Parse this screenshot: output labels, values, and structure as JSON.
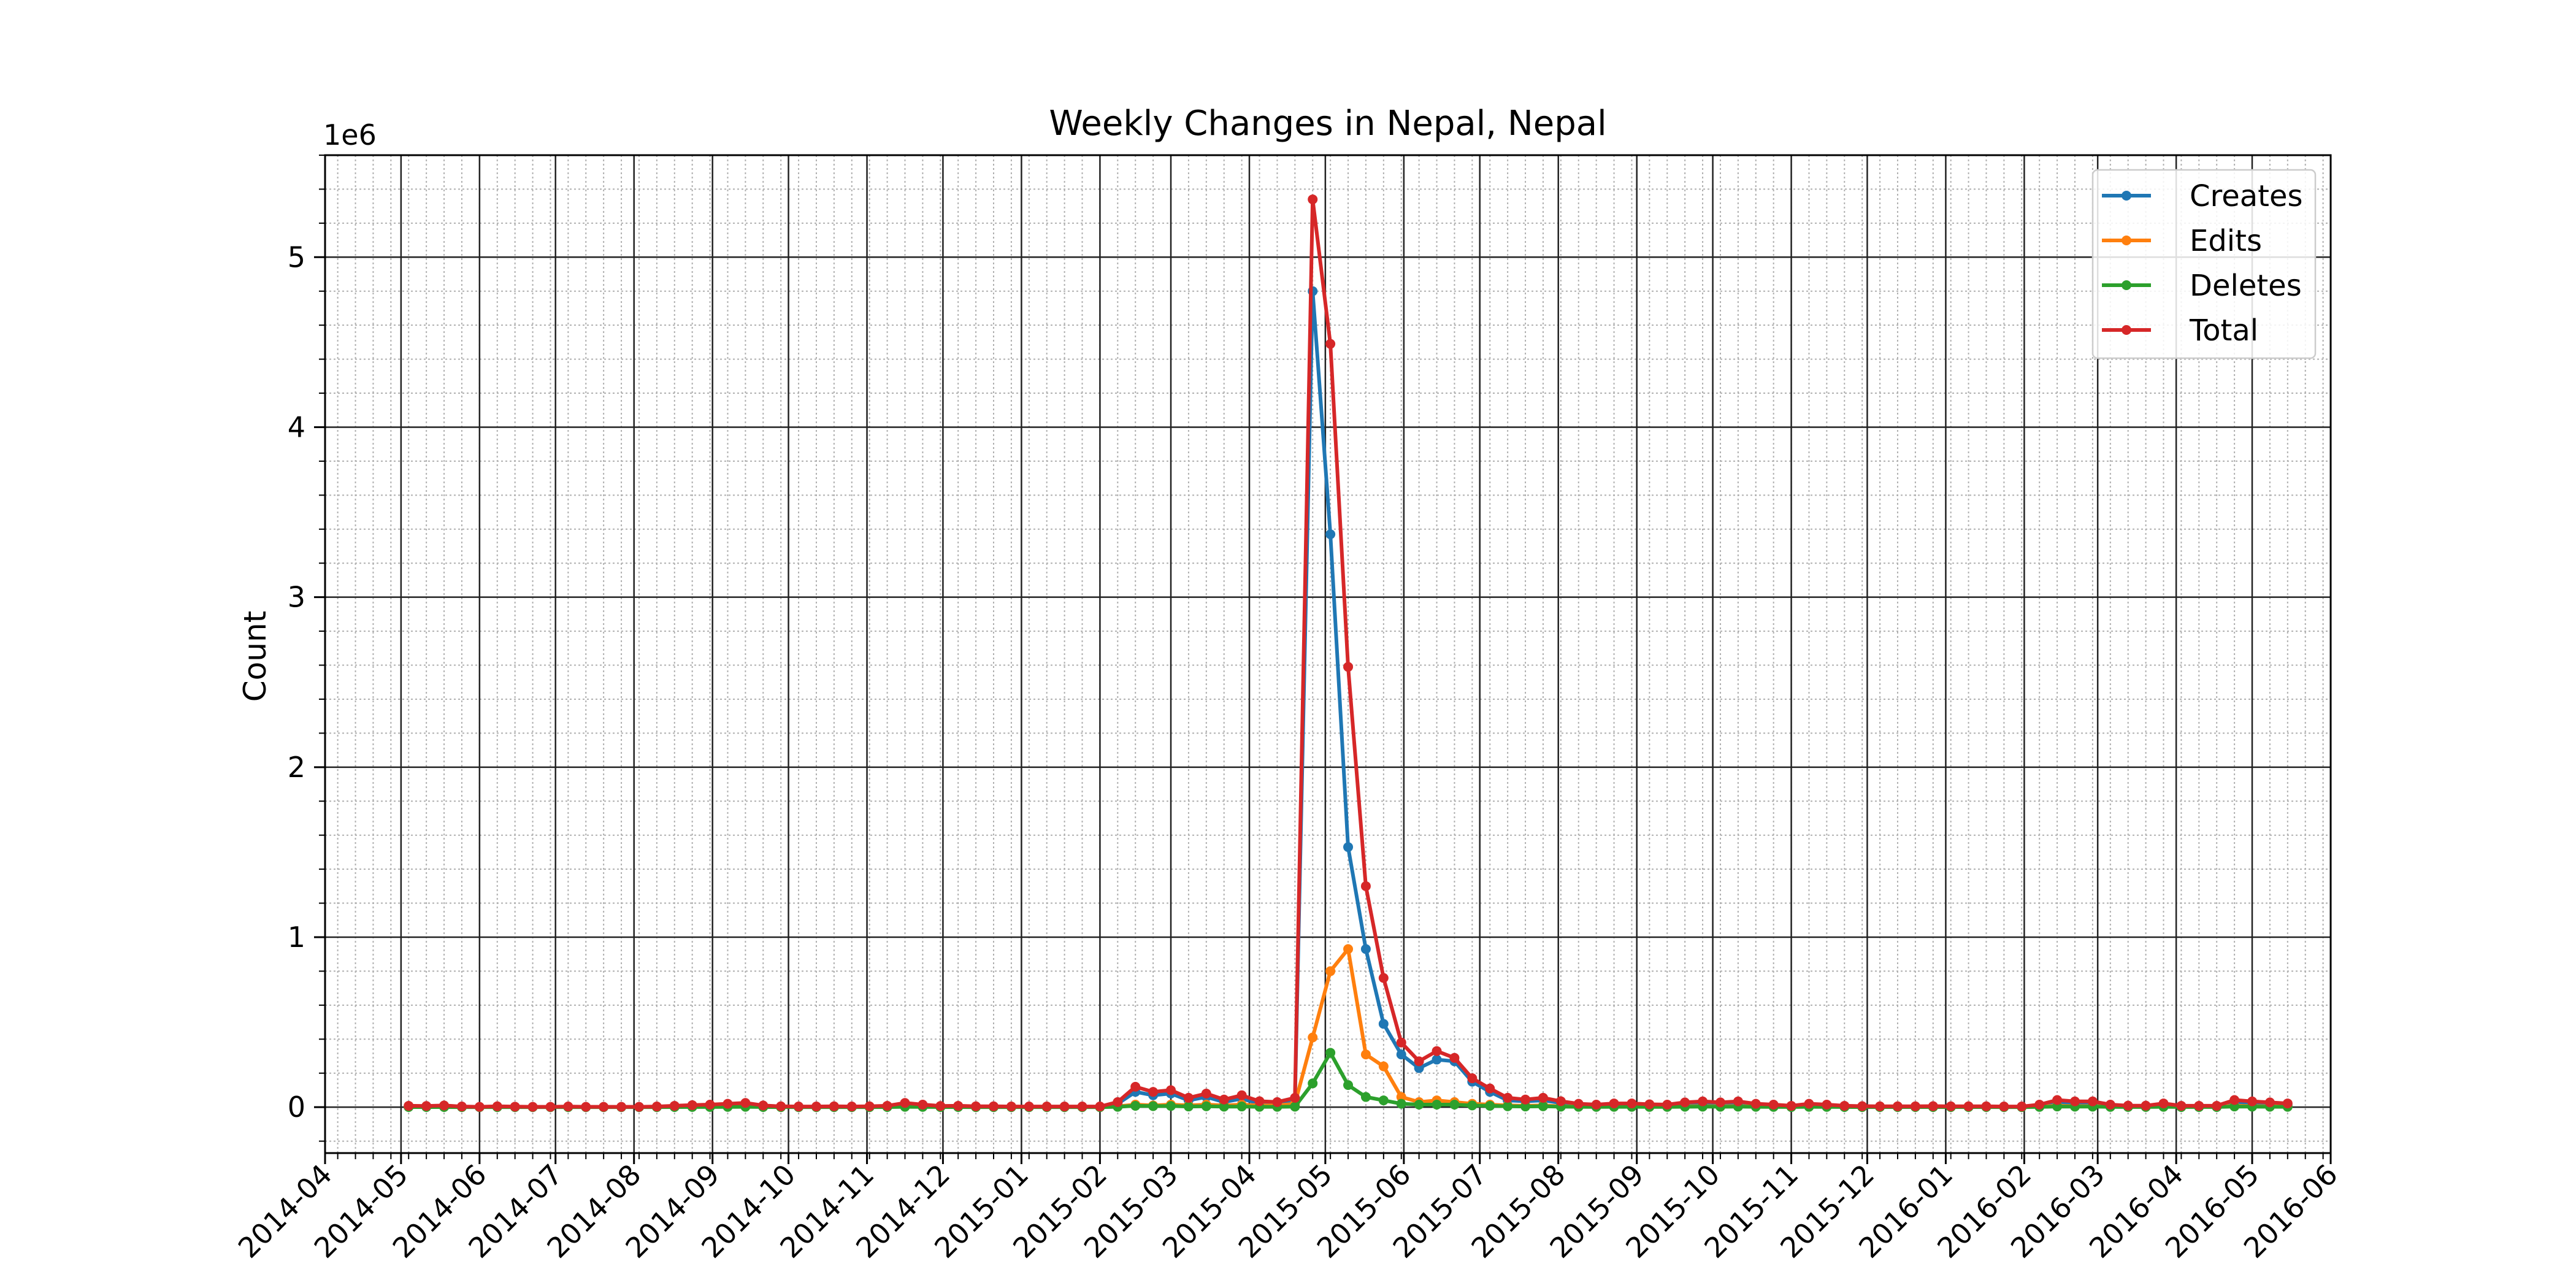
{
  "chart_data": {
    "type": "line",
    "title": "Weekly Changes in Nepal, Nepal",
    "xlabel": "",
    "ylabel": "Count",
    "y_offset_label": "1e6",
    "y_scale_factor": 1000000,
    "xlim": [
      "2014-04-01",
      "2016-06-01"
    ],
    "ylim": [
      -0.27,
      5.6
    ],
    "grid": true,
    "minor_grid": true,
    "legend_position": "top-right",
    "x_tick_labels": [
      "2014-04",
      "2014-05",
      "2014-06",
      "2014-07",
      "2014-08",
      "2014-09",
      "2014-10",
      "2014-11",
      "2014-12",
      "2015-01",
      "2015-02",
      "2015-03",
      "2015-04",
      "2015-05",
      "2015-06",
      "2015-07",
      "2015-08",
      "2015-09",
      "2015-10",
      "2015-11",
      "2015-12",
      "2016-01",
      "2016-02",
      "2016-03",
      "2016-04",
      "2016-05",
      "2016-06"
    ],
    "y_tick_labels": [
      "0",
      "1",
      "2",
      "3",
      "4",
      "5"
    ],
    "x": [
      "2014-05-04",
      "2014-05-11",
      "2014-05-18",
      "2014-05-25",
      "2014-06-01",
      "2014-06-08",
      "2014-06-15",
      "2014-06-22",
      "2014-06-29",
      "2014-07-06",
      "2014-07-13",
      "2014-07-20",
      "2014-07-27",
      "2014-08-03",
      "2014-08-10",
      "2014-08-17",
      "2014-08-24",
      "2014-08-31",
      "2014-09-07",
      "2014-09-14",
      "2014-09-21",
      "2014-09-28",
      "2014-10-05",
      "2014-10-12",
      "2014-10-19",
      "2014-10-26",
      "2014-11-02",
      "2014-11-09",
      "2014-11-16",
      "2014-11-23",
      "2014-11-30",
      "2014-12-07",
      "2014-12-14",
      "2014-12-21",
      "2014-12-28",
      "2015-01-04",
      "2015-01-11",
      "2015-01-18",
      "2015-01-25",
      "2015-02-01",
      "2015-02-08",
      "2015-02-15",
      "2015-02-22",
      "2015-03-01",
      "2015-03-08",
      "2015-03-15",
      "2015-03-22",
      "2015-03-29",
      "2015-04-05",
      "2015-04-12",
      "2015-04-19",
      "2015-04-26",
      "2015-05-03",
      "2015-05-10",
      "2015-05-17",
      "2015-05-24",
      "2015-05-31",
      "2015-06-07",
      "2015-06-14",
      "2015-06-21",
      "2015-06-28",
      "2015-07-05",
      "2015-07-12",
      "2015-07-19",
      "2015-07-26",
      "2015-08-02",
      "2015-08-09",
      "2015-08-16",
      "2015-08-23",
      "2015-08-30",
      "2015-09-06",
      "2015-09-13",
      "2015-09-20",
      "2015-09-27",
      "2015-10-04",
      "2015-10-11",
      "2015-10-18",
      "2015-10-25",
      "2015-11-01",
      "2015-11-08",
      "2015-11-15",
      "2015-11-22",
      "2015-11-29",
      "2015-12-06",
      "2015-12-13",
      "2015-12-20",
      "2015-12-27",
      "2016-01-03",
      "2016-01-10",
      "2016-01-17",
      "2016-01-24",
      "2016-01-31",
      "2016-02-07",
      "2016-02-14",
      "2016-02-21",
      "2016-02-28",
      "2016-03-06",
      "2016-03-13",
      "2016-03-20",
      "2016-03-27",
      "2016-04-03",
      "2016-04-10",
      "2016-04-17",
      "2016-04-24",
      "2016-05-01",
      "2016-05-08",
      "2016-05-15"
    ],
    "series": [
      {
        "name": "Creates",
        "color": "#1f77b4",
        "values": [
          5000,
          4000,
          6000,
          2000,
          1000,
          3000,
          2000,
          1000,
          1000,
          2000,
          1000,
          1000,
          1000,
          1000,
          2000,
          5000,
          8000,
          9000,
          12000,
          15000,
          6000,
          3000,
          2000,
          2000,
          3000,
          2000,
          3000,
          5000,
          15000,
          10000,
          4000,
          5000,
          3000,
          3000,
          2000,
          2000,
          2000,
          2000,
          2000,
          2000,
          20000,
          90000,
          70000,
          80000,
          40000,
          60000,
          30000,
          50000,
          20000,
          15000,
          30000,
          4800000,
          3370000,
          1530000,
          930000,
          490000,
          310000,
          230000,
          280000,
          270000,
          150000,
          90000,
          40000,
          35000,
          40000,
          25000,
          15000,
          10000,
          15000,
          15000,
          12000,
          10000,
          20000,
          25000,
          20000,
          25000,
          15000,
          10000,
          5000,
          15000,
          10000,
          5000,
          4000,
          3000,
          3000,
          3000,
          4000,
          3000,
          3000,
          3000,
          2000,
          2000,
          10000,
          30000,
          25000,
          25000,
          10000,
          6000,
          6000,
          15000,
          5000,
          5000,
          5000,
          30000,
          25000,
          20000,
          15000
        ]
      },
      {
        "name": "Edits",
        "color": "#ff7f0e",
        "values": [
          2000,
          2000,
          3000,
          1000,
          1000,
          1000,
          1000,
          1000,
          1000,
          1000,
          1000,
          1000,
          1000,
          1000,
          1000,
          2000,
          3000,
          4000,
          5000,
          6000,
          2000,
          1000,
          1000,
          1000,
          1000,
          1000,
          1000,
          2000,
          6000,
          4000,
          2000,
          2000,
          1000,
          1000,
          1000,
          1000,
          1000,
          1000,
          1000,
          1000,
          5000,
          15000,
          10000,
          15000,
          10000,
          15000,
          10000,
          15000,
          10000,
          10000,
          20000,
          410000,
          800000,
          930000,
          310000,
          240000,
          60000,
          30000,
          40000,
          30000,
          20000,
          15000,
          10000,
          8000,
          10000,
          5000,
          4000,
          3000,
          4000,
          4000,
          3000,
          3000,
          5000,
          6000,
          5000,
          6000,
          4000,
          3000,
          2000,
          4000,
          3000,
          2000,
          1000,
          1000,
          1000,
          1000,
          1000,
          1000,
          1000,
          1000,
          1000,
          1000,
          3000,
          8000,
          6000,
          6000,
          3000,
          2000,
          2000,
          4000,
          2000,
          2000,
          2000,
          8000,
          6000,
          5000,
          4000
        ]
      },
      {
        "name": "Deletes",
        "color": "#2ca02c",
        "values": [
          500,
          500,
          500,
          300,
          200,
          300,
          200,
          200,
          200,
          200,
          200,
          200,
          200,
          200,
          300,
          500,
          1000,
          1000,
          1500,
          2000,
          800,
          400,
          300,
          300,
          400,
          300,
          400,
          600,
          2000,
          1500,
          600,
          600,
          400,
          400,
          300,
          300,
          300,
          300,
          300,
          300,
          2000,
          8000,
          6000,
          7000,
          4000,
          5000,
          3000,
          4000,
          2000,
          2000,
          3000,
          140000,
          320000,
          130000,
          60000,
          40000,
          20000,
          15000,
          15000,
          15000,
          10000,
          8000,
          5000,
          4000,
          5000,
          3000,
          2000,
          1500,
          2000,
          2000,
          1500,
          1500,
          2500,
          3000,
          2500,
          3000,
          2000,
          1500,
          800,
          2000,
          1500,
          800,
          600,
          500,
          500,
          500,
          600,
          500,
          500,
          500,
          400,
          400,
          1500,
          4000,
          3000,
          3000,
          1500,
          1000,
          1000,
          2000,
          800,
          800,
          800,
          4000,
          3000,
          2500,
          2000
        ]
      },
      {
        "name": "Total",
        "color": "#d62728",
        "values": [
          8000,
          7000,
          10000,
          4000,
          2000,
          5000,
          3000,
          2000,
          2000,
          4000,
          2000,
          2000,
          2000,
          2000,
          4000,
          8000,
          12000,
          15000,
          20000,
          25000,
          10000,
          5000,
          4000,
          4000,
          5000,
          4000,
          5000,
          8000,
          25000,
          15000,
          7000,
          8000,
          5000,
          5000,
          4000,
          4000,
          4000,
          4000,
          4000,
          4000,
          30000,
          120000,
          90000,
          100000,
          55000,
          80000,
          45000,
          70000,
          35000,
          30000,
          55000,
          5340000,
          4490000,
          2590000,
          1300000,
          760000,
          380000,
          270000,
          330000,
          290000,
          170000,
          110000,
          55000,
          45000,
          55000,
          35000,
          20000,
          15000,
          22000,
          22000,
          17000,
          15000,
          28000,
          34000,
          28000,
          34000,
          20000,
          15000,
          8000,
          20000,
          15000,
          8000,
          6000,
          5000,
          5000,
          5000,
          6000,
          5000,
          5000,
          5000,
          4000,
          4000,
          15000,
          42000,
          34000,
          34000,
          15000,
          9000,
          9000,
          22000,
          8000,
          8000,
          8000,
          42000,
          34000,
          28000,
          22000
        ]
      }
    ]
  }
}
